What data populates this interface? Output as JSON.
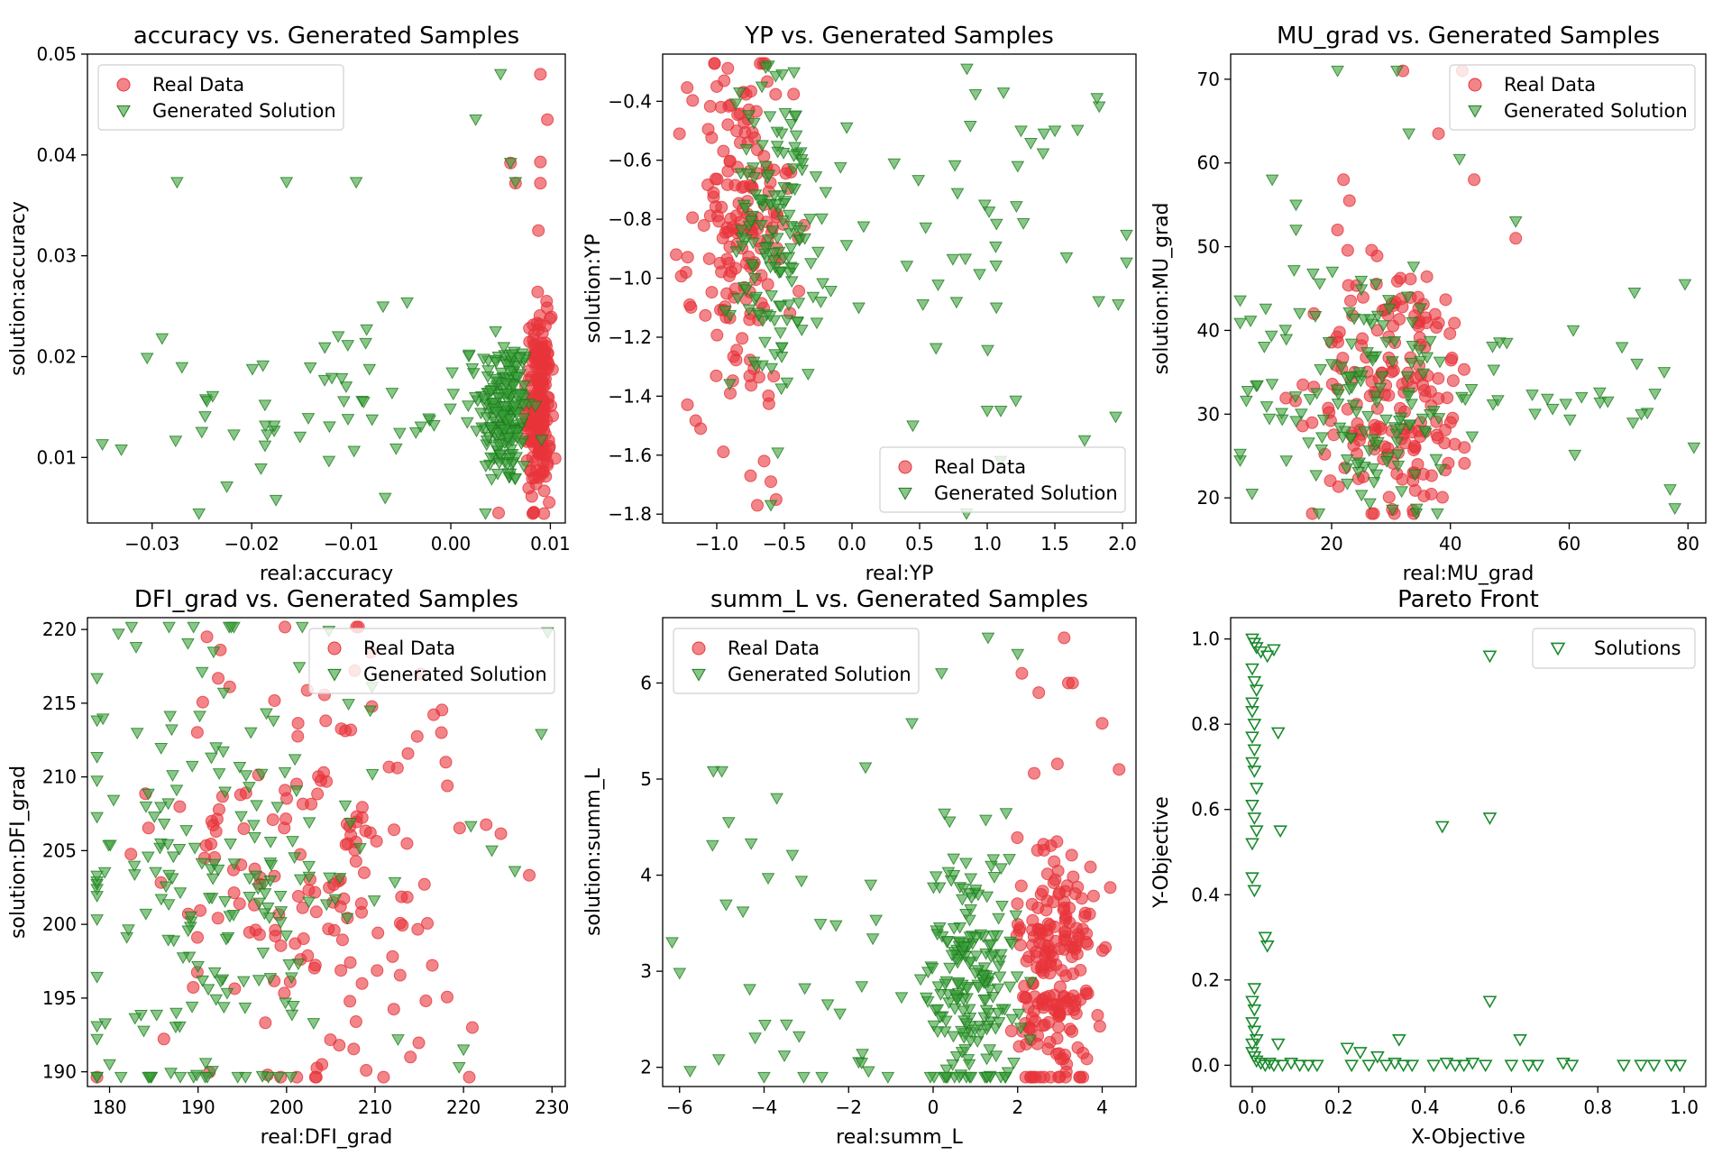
{
  "figure": {
    "legend_real": "Real Data",
    "legend_gen": "Generated Solution",
    "legend_solutions": "Solutions",
    "colors": {
      "real_fill": "#e8343a",
      "gen_fill": "#3aa13a",
      "gen_edge": "#1e7a1e",
      "pareto_edge": "#1a8a2e"
    }
  },
  "chart_data": [
    {
      "type": "scatter",
      "title": "accuracy vs. Generated Samples",
      "xlabel": "real:accuracy",
      "ylabel": "solution:accuracy",
      "xlim": [
        -0.0365,
        0.0115
      ],
      "ylim": [
        0.0035,
        0.05
      ],
      "xticks": [
        -0.03,
        -0.02,
        -0.01,
        0.0,
        0.01
      ],
      "xtick_labels": [
        "−0.03",
        "−0.02",
        "−0.01",
        "0.00",
        "0.01"
      ],
      "yticks": [
        0.01,
        0.02,
        0.03,
        0.04,
        0.05
      ],
      "ytick_labels": [
        "0.01",
        "0.02",
        "0.03",
        "0.04",
        "0.05"
      ],
      "legend_loc": "upper-left",
      "gen_clusters": [
        {
          "xc": 0.0055,
          "yc": 0.0145,
          "sx": 0.0013,
          "sy": 0.0038,
          "n": 190
        },
        {
          "xc": -0.012,
          "yc": 0.0145,
          "sx": 0.0085,
          "sy": 0.0045,
          "n": 62
        }
      ],
      "real_clusters": [
        {
          "xc": 0.0088,
          "yc": 0.015,
          "sx": 0.0006,
          "sy": 0.0045,
          "n": 200
        }
      ],
      "gen_extra": [
        [
          -0.0275,
          0.0373
        ],
        [
          -0.0165,
          0.0373
        ],
        [
          -0.0095,
          0.0373
        ],
        [
          0.005,
          0.048
        ],
        [
          0.0025,
          0.0435
        ],
        [
          -0.035,
          0.0113
        ],
        [
          -0.029,
          0.0218
        ],
        [
          -0.0225,
          0.0071
        ],
        [
          0.006,
          0.0392
        ],
        [
          0.0065,
          0.0373
        ],
        [
          0.0045,
          0.0225
        ]
      ],
      "real_extra": [
        [
          0.009,
          0.048
        ],
        [
          0.0097,
          0.0435
        ],
        [
          0.006,
          0.0392
        ],
        [
          0.009,
          0.0393
        ],
        [
          0.009,
          0.0372
        ],
        [
          0.0065,
          0.0372
        ],
        [
          0.0088,
          0.0325
        ],
        [
          0.0048,
          0.0045
        ]
      ]
    },
    {
      "type": "scatter",
      "title": "YP vs. Generated Samples",
      "xlabel": "real:YP",
      "ylabel": "solution:YP",
      "xlim": [
        -1.4,
        2.1
      ],
      "ylim": [
        -1.83,
        -0.24
      ],
      "xticks": [
        -1.0,
        -0.5,
        0.0,
        0.5,
        1.0,
        1.5,
        2.0
      ],
      "xtick_labels": [
        "−1.0",
        "−0.5",
        "0.0",
        "0.5",
        "1.0",
        "1.5",
        "2.0"
      ],
      "yticks": [
        -1.8,
        -1.6,
        -1.4,
        -1.2,
        -1.0,
        -0.8,
        -0.6,
        -0.4
      ],
      "ytick_labels": [
        "−1.8",
        "−1.6",
        "−1.4",
        "−1.2",
        "−1.0",
        "−0.8",
        "−0.6",
        "−0.4"
      ],
      "legend_loc": "lower-right",
      "gen_clusters": [
        {
          "xc": -0.55,
          "yc": -0.85,
          "sx": 0.17,
          "sy": 0.27,
          "n": 150
        },
        {
          "xc": 1.1,
          "yc": -0.8,
          "sx": 0.5,
          "sy": 0.28,
          "n": 42
        }
      ],
      "real_clusters": [
        {
          "xc": -0.82,
          "yc": -0.85,
          "sx": 0.19,
          "sy": 0.3,
          "n": 175
        }
      ],
      "gen_extra": [
        [
          0.85,
          -0.29
        ],
        [
          1.25,
          -0.5
        ],
        [
          1.5,
          -0.5
        ],
        [
          0.45,
          -1.5
        ],
        [
          1.0,
          -1.45
        ],
        [
          1.1,
          -1.45
        ],
        [
          1.95,
          -1.47
        ],
        [
          1.72,
          -1.55
        ],
        [
          1.1,
          -1.62
        ],
        [
          -0.6,
          -1.77
        ],
        [
          0.05,
          -1.1
        ]
      ],
      "real_extra": [
        [
          -1.3,
          -0.92
        ],
        [
          -1.2,
          -1.09
        ],
        [
          -0.9,
          -1.39
        ],
        [
          -0.75,
          -1.67
        ],
        [
          -0.7,
          -1.77
        ],
        [
          -0.65,
          -1.62
        ],
        [
          -1.0,
          -0.35
        ],
        [
          -0.6,
          -1.69
        ]
      ]
    },
    {
      "type": "scatter",
      "title": "MU_grad vs. Generated Samples",
      "xlabel": "real:MU_grad",
      "ylabel": "solution:MU_grad",
      "xlim": [
        3,
        83
      ],
      "ylim": [
        17,
        73
      ],
      "xticks": [
        20,
        40,
        60,
        80
      ],
      "xtick_labels": [
        "20",
        "40",
        "60",
        "80"
      ],
      "yticks": [
        20,
        30,
        40,
        50,
        60,
        70
      ],
      "ytick_labels": [
        "20",
        "30",
        "40",
        "50",
        "60",
        "70"
      ],
      "legend_loc": "upper-right",
      "gen_clusters": [
        {
          "xc": 25,
          "yc": 33,
          "sx": 10,
          "sy": 8,
          "n": 150
        },
        {
          "xc": 62,
          "yc": 30,
          "sx": 11,
          "sy": 6,
          "n": 26
        }
      ],
      "real_clusters": [
        {
          "xc": 31,
          "yc": 33,
          "sx": 7,
          "sy": 8,
          "n": 185
        }
      ],
      "gen_extra": [
        [
          21,
          71
        ],
        [
          31,
          71
        ],
        [
          33,
          63.5
        ],
        [
          10,
          58
        ],
        [
          14,
          55
        ],
        [
          14,
          52
        ],
        [
          79.5,
          45.5
        ],
        [
          76,
          35
        ],
        [
          77,
          21
        ],
        [
          81,
          26
        ],
        [
          51,
          53
        ],
        [
          71,
          44.5
        ]
      ],
      "real_extra": [
        [
          32,
          71
        ],
        [
          42,
          71
        ],
        [
          38,
          63.5
        ],
        [
          44,
          58
        ],
        [
          23,
          55.5
        ],
        [
          21,
          52
        ],
        [
          51,
          51
        ],
        [
          22,
          58
        ]
      ]
    },
    {
      "type": "scatter",
      "title": "DFI_grad vs. Generated Samples",
      "xlabel": "real:DFI_grad",
      "ylabel": "solution:DFI_grad",
      "xlim": [
        177.5,
        231.5
      ],
      "ylim": [
        189,
        220.8
      ],
      "xticks": [
        180,
        190,
        200,
        210,
        220,
        230
      ],
      "xtick_labels": [
        "180",
        "190",
        "200",
        "210",
        "220",
        "230"
      ],
      "yticks": [
        190,
        195,
        200,
        205,
        210,
        215,
        220
      ],
      "ytick_labels": [
        "190",
        "195",
        "200",
        "205",
        "210",
        "215",
        "220"
      ],
      "legend_loc": "upper-right",
      "gen_clusters": [
        {
          "xc": 192,
          "yc": 203,
          "sx": 9,
          "sy": 8.5,
          "n": 200
        }
      ],
      "real_clusters": [
        {
          "xc": 203,
          "yc": 204,
          "sx": 8.5,
          "sy": 8,
          "n": 170
        }
      ],
      "gen_extra": [
        [
          229.5,
          219.8
        ],
        [
          228.8,
          212.9
        ],
        [
          225.8,
          203.6
        ],
        [
          223.2,
          205
        ],
        [
          220,
          191.5
        ],
        [
          219.5,
          190.3
        ],
        [
          181,
          219.7
        ],
        [
          183,
          218.8
        ],
        [
          180,
          190.5
        ]
      ],
      "real_extra": [
        [
          191,
          219.5
        ],
        [
          218,
          211
        ],
        [
          221,
          193
        ],
        [
          209,
          190.1
        ],
        [
          214,
          191
        ],
        [
          217.5,
          213
        ],
        [
          204,
          190.5
        ]
      ]
    },
    {
      "type": "scatter",
      "title": "summ_L vs. Generated Samples",
      "xlabel": "real:summ_L",
      "ylabel": "solution:summ_L",
      "xlim": [
        -6.4,
        4.8
      ],
      "ylim": [
        1.8,
        6.68
      ],
      "xticks": [
        -6,
        -4,
        -2,
        0,
        2,
        4
      ],
      "xtick_labels": [
        "−6",
        "−4",
        "−2",
        "0",
        "2",
        "4"
      ],
      "yticks": [
        2,
        3,
        4,
        5,
        6
      ],
      "ytick_labels": [
        "2",
        "3",
        "4",
        "5",
        "6"
      ],
      "legend_loc": "upper-left",
      "gen_clusters": [
        {
          "xc": 0.9,
          "yc": 2.9,
          "sx": 0.55,
          "sy": 0.7,
          "n": 200
        },
        {
          "xc": -3.5,
          "yc": 3.0,
          "sx": 1.4,
          "sy": 0.9,
          "n": 32
        }
      ],
      "real_clusters": [
        {
          "xc": 2.9,
          "yc": 3.0,
          "sx": 0.45,
          "sy": 0.75,
          "n": 205
        }
      ],
      "gen_extra": [
        [
          -5.0,
          5.08
        ],
        [
          -5.2,
          5.08
        ],
        [
          -3.7,
          4.8
        ],
        [
          -1.6,
          5.12
        ],
        [
          1.3,
          6.47
        ],
        [
          0.2,
          6.1
        ],
        [
          2.0,
          6.3
        ],
        [
          -0.5,
          5.58
        ],
        [
          -6.0,
          2.98
        ],
        [
          -5.75,
          1.96
        ],
        [
          -4.5,
          3.62
        ]
      ],
      "real_extra": [
        [
          3.1,
          6.47
        ],
        [
          3.2,
          6.0
        ],
        [
          3.3,
          6.0
        ],
        [
          4.4,
          5.1
        ],
        [
          4.0,
          5.58
        ],
        [
          2.1,
          6.1
        ],
        [
          2.5,
          5.9
        ],
        [
          3.0,
          1.9
        ]
      ]
    },
    {
      "type": "scatter",
      "title": "Pareto Front",
      "xlabel": "X-Objective",
      "ylabel": "Y-Objective",
      "xlim": [
        -0.05,
        1.05
      ],
      "ylim": [
        -0.05,
        1.05
      ],
      "xticks": [
        0.0,
        0.2,
        0.4,
        0.6,
        0.8,
        1.0
      ],
      "xtick_labels": [
        "0.0",
        "0.2",
        "0.4",
        "0.6",
        "0.8",
        "1.0"
      ],
      "yticks": [
        0.0,
        0.2,
        0.4,
        0.6,
        0.8,
        1.0
      ],
      "ytick_labels": [
        "0.0",
        "0.2",
        "0.4",
        "0.6",
        "0.8",
        "1.0"
      ],
      "legend_loc": "upper-right",
      "points": [
        [
          0.0,
          1.0
        ],
        [
          0.005,
          0.99
        ],
        [
          0.01,
          0.98
        ],
        [
          0.02,
          0.97
        ],
        [
          0.035,
          0.96
        ],
        [
          0.05,
          0.975
        ],
        [
          0.0,
          0.93
        ],
        [
          0.005,
          0.9
        ],
        [
          0.01,
          0.88
        ],
        [
          0.0,
          0.85
        ],
        [
          0.0,
          0.83
        ],
        [
          0.005,
          0.8
        ],
        [
          0.0,
          0.77
        ],
        [
          0.005,
          0.74
        ],
        [
          0.0,
          0.71
        ],
        [
          0.005,
          0.69
        ],
        [
          0.01,
          0.65
        ],
        [
          0.0,
          0.61
        ],
        [
          0.005,
          0.58
        ],
        [
          0.01,
          0.55
        ],
        [
          0.0,
          0.52
        ],
        [
          0.0,
          0.44
        ],
        [
          0.005,
          0.41
        ],
        [
          0.03,
          0.3
        ],
        [
          0.035,
          0.28
        ],
        [
          0.005,
          0.18
        ],
        [
          0.0,
          0.15
        ],
        [
          0.005,
          0.13
        ],
        [
          0.0,
          0.1
        ],
        [
          0.005,
          0.08
        ],
        [
          0.01,
          0.06
        ],
        [
          0.0,
          0.05
        ],
        [
          0.0,
          0.03
        ],
        [
          0.005,
          0.02
        ],
        [
          0.06,
          0.78
        ],
        [
          0.065,
          0.55
        ],
        [
          0.55,
          0.96
        ],
        [
          0.55,
          0.58
        ],
        [
          0.44,
          0.56
        ],
        [
          0.55,
          0.15
        ],
        [
          0.62,
          0.06
        ],
        [
          0.34,
          0.06
        ],
        [
          0.06,
          0.05
        ],
        [
          0.01,
          0.01
        ],
        [
          0.02,
          0.005
        ],
        [
          0.03,
          0.0
        ],
        [
          0.04,
          0.005
        ],
        [
          0.05,
          0.0
        ],
        [
          0.07,
          0.0
        ],
        [
          0.09,
          0.005
        ],
        [
          0.11,
          0.0
        ],
        [
          0.13,
          0.0
        ],
        [
          0.15,
          0.0
        ],
        [
          0.22,
          0.04
        ],
        [
          0.23,
          0.0
        ],
        [
          0.25,
          0.03
        ],
        [
          0.27,
          0.0
        ],
        [
          0.29,
          0.02
        ],
        [
          0.31,
          0.0
        ],
        [
          0.33,
          0.005
        ],
        [
          0.35,
          0.0
        ],
        [
          0.37,
          0.0
        ],
        [
          0.42,
          0.0
        ],
        [
          0.45,
          0.005
        ],
        [
          0.47,
          0.0
        ],
        [
          0.49,
          0.0
        ],
        [
          0.51,
          0.005
        ],
        [
          0.54,
          0.0
        ],
        [
          0.6,
          0.0
        ],
        [
          0.64,
          0.0
        ],
        [
          0.66,
          0.0
        ],
        [
          0.72,
          0.005
        ],
        [
          0.74,
          0.0
        ],
        [
          0.86,
          0.0
        ],
        [
          0.9,
          0.0
        ],
        [
          0.93,
          0.0
        ],
        [
          0.97,
          0.0
        ],
        [
          0.99,
          0.0
        ]
      ]
    }
  ]
}
